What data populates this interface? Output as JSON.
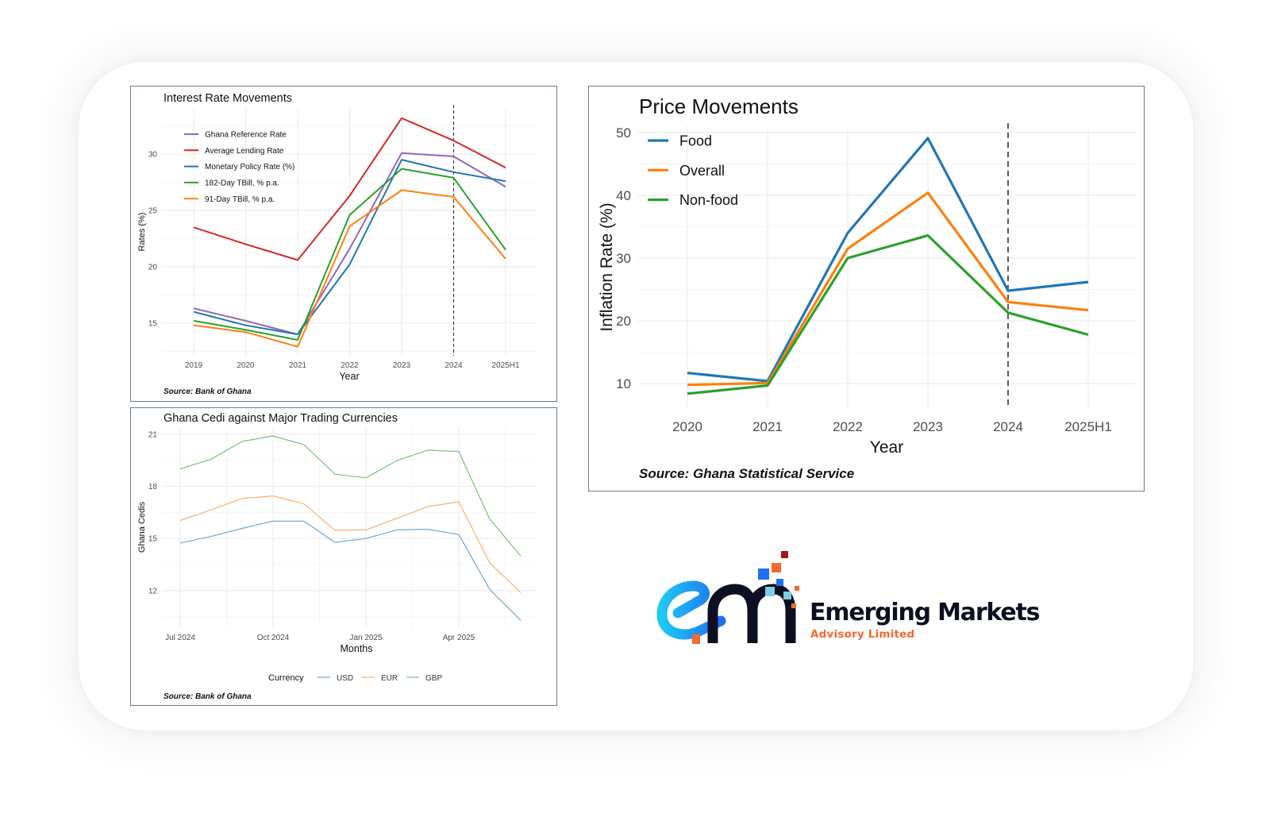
{
  "chart_data": [
    {
      "id": "interest",
      "type": "line",
      "title": "Interest Rate Movements",
      "xlabel": "Year",
      "ylabel": "Rates (%)",
      "source": "Source: Bank of Ghana",
      "categories": [
        "2019",
        "2020",
        "2021",
        "2022",
        "2023",
        "2024",
        "2025H1"
      ],
      "yticks": [
        15,
        20,
        25,
        30
      ],
      "ylim": [
        12.1,
        34.1
      ],
      "vline_at": "2024",
      "grid": true,
      "legend_position": "top-left",
      "series": [
        {
          "name": "Ghana Reference Rate",
          "color": "#9467bd",
          "values": [
            16.3,
            15.2,
            14.0,
            21.6,
            30.1,
            29.8,
            27.1
          ]
        },
        {
          "name": "Average Lending Rate",
          "color": "#d62728",
          "values": [
            23.5,
            22.0,
            20.6,
            26.3,
            33.2,
            31.2,
            28.8
          ]
        },
        {
          "name": "Monetary Policy Rate (%)",
          "color": "#1f77b4",
          "values": [
            16.0,
            14.8,
            14.0,
            20.2,
            29.5,
            28.4,
            27.6
          ]
        },
        {
          "name": "182-Day TBill, % p.a.",
          "color": "#2ca02c",
          "values": [
            15.2,
            14.4,
            13.5,
            24.6,
            28.7,
            27.9,
            21.5
          ]
        },
        {
          "name": "91-Day TBill, % p.a.",
          "color": "#ff7f0e",
          "values": [
            14.8,
            14.2,
            12.9,
            23.6,
            26.8,
            26.2,
            20.7
          ]
        }
      ]
    },
    {
      "id": "cedi",
      "type": "line",
      "title": "Ghana Cedi against Major Trading Currencies",
      "xlabel": "Months",
      "ylabel": "Ghana Cedis",
      "source": "Source: Bank of Ghana",
      "categories": [
        "Jul 2024",
        "Aug 2024",
        "Sep 2024",
        "Oct 2024",
        "Nov 2024",
        "Dec 2024",
        "Jan 2025",
        "Feb 2025",
        "Mar 2025",
        "Apr 2025",
        "May 2025",
        "Jun 2025"
      ],
      "xtick_labels": [
        "Jul 2024",
        "Oct 2024",
        "Jan 2025",
        "Apr 2025"
      ],
      "yticks": [
        12,
        15,
        18,
        21
      ],
      "ylim": [
        9.9,
        21.4
      ],
      "grid": true,
      "legend_title": "Currency",
      "legend_position": "bottom",
      "series": [
        {
          "name": "USD",
          "color": "#6fa8d6",
          "values": [
            14.74,
            15.12,
            15.58,
            16.0,
            16.0,
            14.78,
            15.0,
            15.5,
            15.53,
            15.23,
            12.07,
            10.3
          ]
        },
        {
          "name": "EUR",
          "color": "#fdae6b",
          "values": [
            16.04,
            16.65,
            17.3,
            17.45,
            16.99,
            15.47,
            15.5,
            16.16,
            16.83,
            17.11,
            13.6,
            11.89
          ]
        },
        {
          "name": "GBP",
          "color": "#74c476",
          "values": [
            19.0,
            19.56,
            20.58,
            20.9,
            20.39,
            18.7,
            18.49,
            19.48,
            20.08,
            20.0,
            16.12,
            14.0
          ]
        }
      ]
    },
    {
      "id": "price",
      "type": "line",
      "title": "Price Movements",
      "xlabel": "Year",
      "ylabel": "Inflation Rate (%)",
      "source": "Source: Ghana Statistical Service",
      "categories": [
        "2020",
        "2021",
        "2022",
        "2023",
        "2024",
        "2025H1"
      ],
      "yticks": [
        10,
        20,
        30,
        40,
        50
      ],
      "ylim": [
        6.1,
        51.0
      ],
      "vline_at": "2024",
      "grid": true,
      "legend_position": "top-left",
      "series": [
        {
          "name": "Food",
          "color": "#1f77b4",
          "values": [
            11.7,
            10.4,
            34.0,
            49.1,
            24.8,
            26.2
          ]
        },
        {
          "name": "Overall",
          "color": "#ff7f0e",
          "values": [
            9.8,
            10.1,
            31.5,
            40.4,
            23.0,
            21.7
          ]
        },
        {
          "name": "Non-food",
          "color": "#2ca02c",
          "values": [
            8.4,
            9.7,
            30.0,
            33.6,
            21.3,
            17.8
          ]
        }
      ]
    }
  ],
  "logo": {
    "brand_name": "Emerging Markets",
    "brand_sub": "Advisory Limited",
    "mark_icon": "em-monogram-icon",
    "colors": {
      "navy": "#0d0f22",
      "orange": "#f26a2e",
      "blue": "#1f6ff2",
      "cyan": "#1ec8f5",
      "light_blue": "#7fcde6",
      "dark_red": "#a01818"
    }
  }
}
